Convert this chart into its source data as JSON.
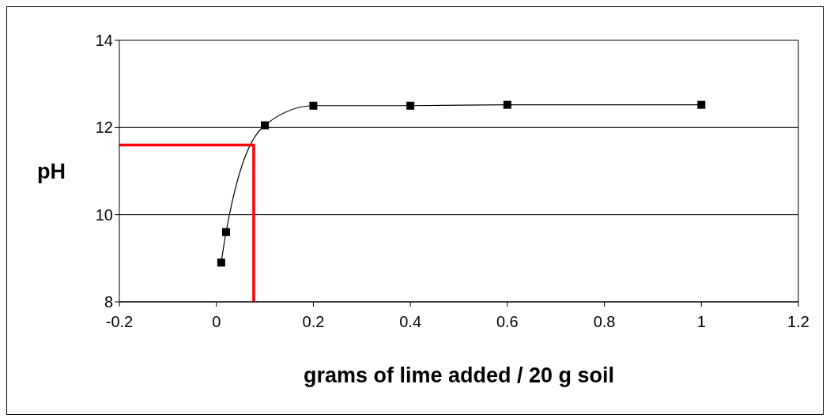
{
  "chart_data": {
    "type": "line",
    "xlabel": "grams of lime added / 20 g soil",
    "ylabel": "pH",
    "xlim": [
      -0.2,
      1.2
    ],
    "xticks": [
      -0.2,
      0,
      0.2,
      0.4,
      0.6,
      0.8,
      1,
      1.2
    ],
    "ylim": [
      8,
      14
    ],
    "yticks": [
      8,
      10,
      12,
      14
    ],
    "grid": "y",
    "series": [
      {
        "color": "#000000",
        "marker": "square",
        "x": [
          0.01,
          0.02,
          0.1,
          0.2,
          0.4,
          0.6,
          1
        ],
        "values": [
          8.9,
          9.6,
          12.05,
          12.5,
          12.5,
          12.52,
          12.52
        ]
      },
      {
        "color": "#ff0000",
        "marker": "none",
        "x": [
          -0.2,
          0.077,
          0.077
        ],
        "values": [
          11.6,
          11.6,
          8
        ]
      }
    ]
  }
}
